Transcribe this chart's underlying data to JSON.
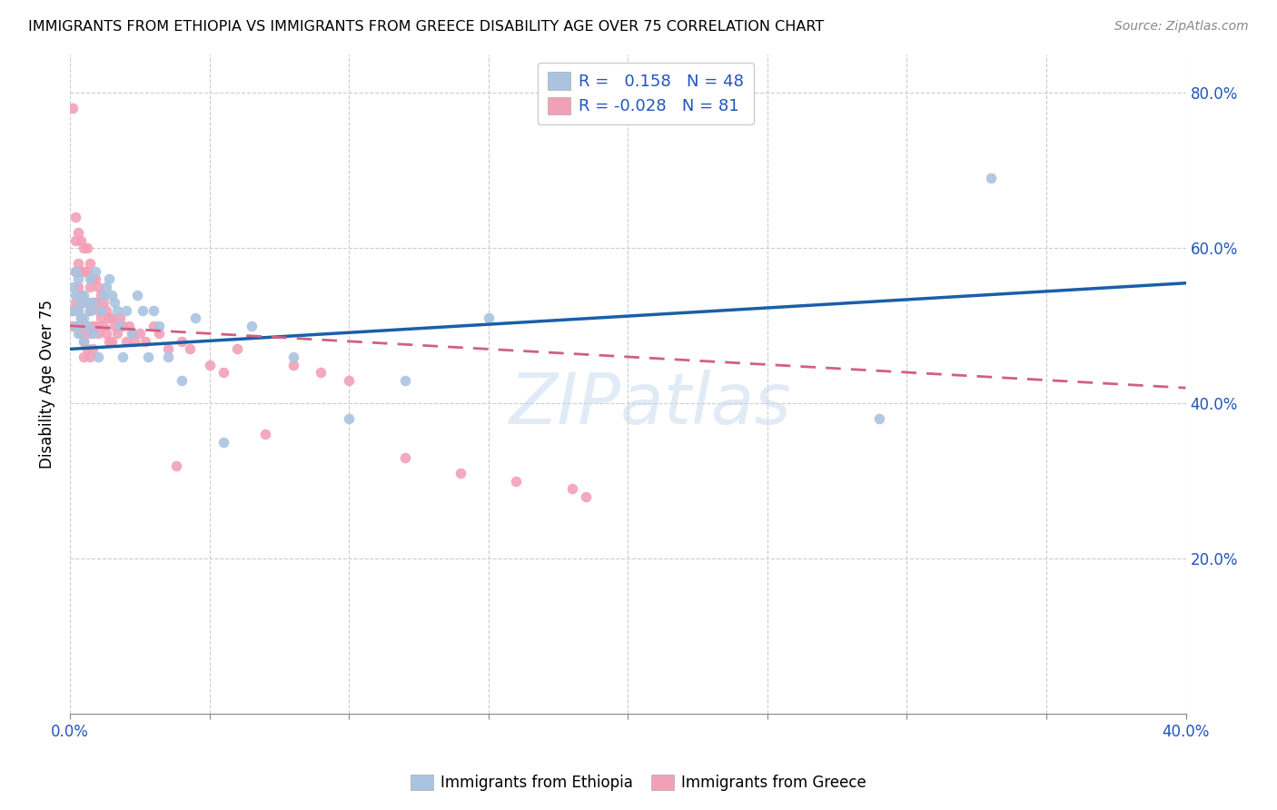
{
  "title": "IMMIGRANTS FROM ETHIOPIA VS IMMIGRANTS FROM GREECE DISABILITY AGE OVER 75 CORRELATION CHART",
  "source": "Source: ZipAtlas.com",
  "ylabel": "Disability Age Over 75",
  "x_min": 0.0,
  "x_max": 0.4,
  "y_min": 0.0,
  "y_max": 0.85,
  "y_ticks_right": [
    0.2,
    0.4,
    0.6,
    0.8
  ],
  "y_tick_labels_right": [
    "20.0%",
    "40.0%",
    "60.0%",
    "80.0%"
  ],
  "ethiopia_R": 0.158,
  "ethiopia_N": 48,
  "greece_R": -0.028,
  "greece_N": 81,
  "ethiopia_color": "#aac4e0",
  "greece_color": "#f2a0b8",
  "ethiopia_line_color": "#1a5fa8",
  "greece_line_color": "#d06080",
  "legend_ethiopia_label": "R =   0.158   N = 48",
  "legend_greece_label": "R = -0.028   N = 81",
  "watermark": "ZIPatlas",
  "ethiopia_trend_x0": 0.0,
  "ethiopia_trend_y0": 0.47,
  "ethiopia_trend_x1": 0.4,
  "ethiopia_trend_y1": 0.555,
  "greece_trend_x0": 0.0,
  "greece_trend_y0": 0.5,
  "greece_trend_x1": 0.4,
  "greece_trend_y1": 0.42,
  "ethiopia_x": [
    0.001,
    0.001,
    0.002,
    0.002,
    0.002,
    0.003,
    0.003,
    0.003,
    0.004,
    0.004,
    0.005,
    0.005,
    0.005,
    0.006,
    0.006,
    0.007,
    0.007,
    0.008,
    0.008,
    0.009,
    0.01,
    0.011,
    0.012,
    0.013,
    0.014,
    0.015,
    0.016,
    0.017,
    0.018,
    0.019,
    0.02,
    0.022,
    0.024,
    0.026,
    0.028,
    0.03,
    0.032,
    0.035,
    0.04,
    0.045,
    0.055,
    0.065,
    0.08,
    0.1,
    0.12,
    0.15,
    0.29,
    0.33
  ],
  "ethiopia_y": [
    0.52,
    0.55,
    0.5,
    0.54,
    0.57,
    0.49,
    0.52,
    0.56,
    0.51,
    0.53,
    0.48,
    0.51,
    0.54,
    0.5,
    0.53,
    0.56,
    0.52,
    0.49,
    0.53,
    0.57,
    0.46,
    0.52,
    0.54,
    0.55,
    0.56,
    0.54,
    0.53,
    0.52,
    0.5,
    0.46,
    0.52,
    0.49,
    0.54,
    0.52,
    0.46,
    0.52,
    0.5,
    0.46,
    0.43,
    0.51,
    0.35,
    0.5,
    0.46,
    0.38,
    0.43,
    0.51,
    0.38,
    0.69
  ],
  "greece_x": [
    0.001,
    0.001,
    0.001,
    0.002,
    0.002,
    0.002,
    0.002,
    0.003,
    0.003,
    0.003,
    0.003,
    0.003,
    0.004,
    0.004,
    0.004,
    0.004,
    0.004,
    0.005,
    0.005,
    0.005,
    0.005,
    0.005,
    0.005,
    0.006,
    0.006,
    0.006,
    0.006,
    0.006,
    0.007,
    0.007,
    0.007,
    0.007,
    0.007,
    0.008,
    0.008,
    0.008,
    0.008,
    0.009,
    0.009,
    0.009,
    0.01,
    0.01,
    0.01,
    0.011,
    0.011,
    0.012,
    0.012,
    0.013,
    0.013,
    0.014,
    0.014,
    0.015,
    0.015,
    0.016,
    0.017,
    0.018,
    0.019,
    0.02,
    0.021,
    0.022,
    0.023,
    0.025,
    0.027,
    0.03,
    0.032,
    0.035,
    0.038,
    0.04,
    0.043,
    0.05,
    0.055,
    0.06,
    0.07,
    0.08,
    0.09,
    0.1,
    0.12,
    0.14,
    0.16,
    0.18,
    0.185
  ],
  "greece_y": [
    0.78,
    0.52,
    0.5,
    0.64,
    0.61,
    0.57,
    0.53,
    0.62,
    0.58,
    0.55,
    0.52,
    0.5,
    0.61,
    0.57,
    0.54,
    0.51,
    0.49,
    0.6,
    0.57,
    0.53,
    0.5,
    0.48,
    0.46,
    0.6,
    0.57,
    0.53,
    0.5,
    0.47,
    0.58,
    0.55,
    0.52,
    0.49,
    0.46,
    0.56,
    0.53,
    0.5,
    0.47,
    0.56,
    0.53,
    0.5,
    0.55,
    0.52,
    0.49,
    0.54,
    0.51,
    0.53,
    0.5,
    0.52,
    0.49,
    0.51,
    0.48,
    0.51,
    0.48,
    0.5,
    0.49,
    0.51,
    0.5,
    0.48,
    0.5,
    0.49,
    0.48,
    0.49,
    0.48,
    0.5,
    0.49,
    0.47,
    0.32,
    0.48,
    0.47,
    0.45,
    0.44,
    0.47,
    0.36,
    0.45,
    0.44,
    0.43,
    0.33,
    0.31,
    0.3,
    0.29,
    0.28
  ]
}
